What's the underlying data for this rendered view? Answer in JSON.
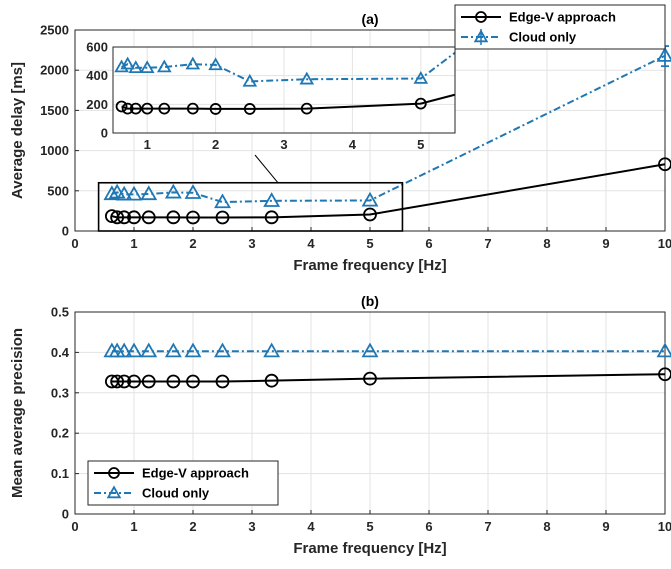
{
  "colors": {
    "edge": "#000000",
    "cloud": "#1f77b4",
    "grid": "#e3e3e3",
    "axis": "#262626"
  },
  "chart_data": [
    {
      "id": "a",
      "type": "line",
      "title": "(a)",
      "xlabel": "Frame frequency [Hz]",
      "ylabel": "Average delay [ms]",
      "xlim": [
        0,
        10
      ],
      "ylim": [
        0,
        2500
      ],
      "xticks": [
        "0",
        "1",
        "2",
        "3",
        "4",
        "5",
        "6",
        "7",
        "8",
        "9",
        "10"
      ],
      "yticks": [
        "0",
        "500",
        "1000",
        "1500",
        "2000",
        "2500"
      ],
      "grid": true,
      "legend_position": "top-right",
      "series": [
        {
          "name": "Edge-V approach",
          "style": "solid",
          "marker": "circle",
          "color": "#000000",
          "x": [
            0.625,
            0.714,
            0.833,
            1.0,
            1.25,
            1.667,
            2.0,
            2.5,
            3.333,
            5.0,
            10.0
          ],
          "y": [
            185,
            170,
            170,
            170,
            170,
            170,
            168,
            168,
            170,
            205,
            830
          ]
        },
        {
          "name": "Cloud only",
          "style": "dashdot",
          "marker": "triangle",
          "color": "#1f77b4",
          "x": [
            0.625,
            0.714,
            0.833,
            1.0,
            1.25,
            1.667,
            2.0,
            2.5,
            3.333,
            5.0,
            10.0
          ],
          "y": [
            460,
            480,
            455,
            455,
            460,
            480,
            475,
            360,
            375,
            380,
            2180
          ],
          "error": {
            "x": 10.0,
            "low": 2050,
            "high": 2300
          }
        }
      ],
      "inset": {
        "xlim": [
          0.5,
          5.5
        ],
        "ylim": [
          0,
          600
        ],
        "xticks": [
          "1",
          "2",
          "3",
          "4",
          "5"
        ],
        "yticks": [
          "0",
          "200",
          "400",
          "600"
        ],
        "zoom_box": {
          "xlim": [
            0.4,
            5.55
          ],
          "ylim": [
            0,
            600
          ]
        }
      }
    },
    {
      "id": "b",
      "type": "line",
      "title": "(b)",
      "xlabel": "Frame frequency [Hz]",
      "ylabel": "Mean average precision",
      "xlim": [
        0,
        10
      ],
      "ylim": [
        0,
        0.5
      ],
      "xticks": [
        "0",
        "1",
        "2",
        "3",
        "4",
        "5",
        "6",
        "7",
        "8",
        "9",
        "10"
      ],
      "yticks": [
        "0",
        "0.1",
        "0.2",
        "0.3",
        "0.4",
        "0.5"
      ],
      "grid": true,
      "legend_position": "bottom-left",
      "series": [
        {
          "name": "Edge-V approach",
          "style": "solid",
          "marker": "circle",
          "color": "#000000",
          "x": [
            0.625,
            0.714,
            0.833,
            1.0,
            1.25,
            1.667,
            2.0,
            2.5,
            3.333,
            5.0,
            10.0
          ],
          "y": [
            0.328,
            0.328,
            0.328,
            0.328,
            0.328,
            0.328,
            0.328,
            0.328,
            0.33,
            0.335,
            0.346
          ]
        },
        {
          "name": "Cloud only",
          "style": "dashdot",
          "marker": "triangle",
          "color": "#1f77b4",
          "x": [
            0.625,
            0.714,
            0.833,
            1.0,
            1.25,
            1.667,
            2.0,
            2.5,
            3.333,
            5.0,
            10.0
          ],
          "y": [
            0.403,
            0.403,
            0.403,
            0.403,
            0.403,
            0.403,
            0.403,
            0.403,
            0.403,
            0.403,
            0.403
          ]
        }
      ]
    }
  ]
}
